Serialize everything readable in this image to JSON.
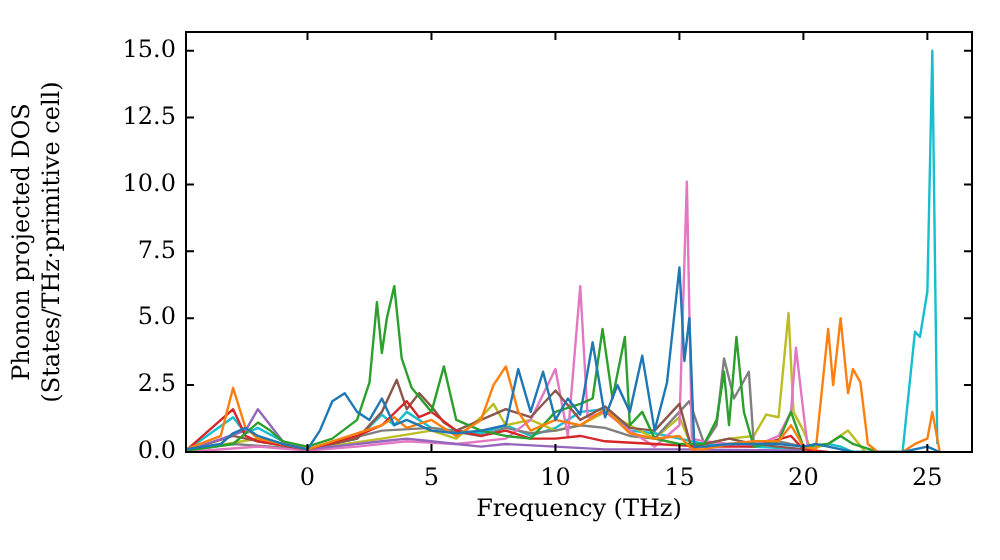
{
  "chart_data": {
    "type": "line",
    "xlabel": "Frequency (THz)",
    "ylabel": "Phonon projected DOS\n(States/THz·primitive cell)",
    "xlim": [
      -4.9,
      26.8
    ],
    "xticks": [
      0,
      5,
      10,
      15,
      20,
      25
    ],
    "ylim": [
      0,
      15.7
    ],
    "yticks": [
      {
        "value": 0,
        "label": "0.0"
      },
      {
        "value": 2.5,
        "label": "2.5"
      },
      {
        "value": 5,
        "label": "5.0"
      },
      {
        "value": 7.5,
        "label": "7.5"
      },
      {
        "value": 10,
        "label": "10.0"
      },
      {
        "value": 12.5,
        "label": "12.5"
      },
      {
        "value": 15,
        "label": "15.0"
      }
    ],
    "grid": false,
    "legend": false,
    "marker": "none",
    "line_style": "solid",
    "series": [
      {
        "color": "#1f77b4",
        "x": [
          -4.9,
          -3.5,
          -3,
          -2.5,
          -2,
          -1,
          0,
          0.5,
          1,
          1.5,
          2,
          2.5,
          3,
          3.5,
          4,
          5,
          6,
          7,
          8,
          8.5,
          9,
          9.5,
          10,
          10.5,
          11,
          11.5,
          12,
          12.5,
          13,
          13.5,
          14,
          14.5,
          15,
          15.2,
          15.4,
          15.6,
          16,
          17,
          18,
          19,
          20,
          20.5,
          21,
          22,
          24,
          25,
          25.5
        ],
        "values": [
          0.1,
          0.3,
          0.7,
          0.9,
          0.6,
          0.3,
          0.1,
          0.8,
          1.9,
          2.2,
          1.5,
          1.2,
          2.0,
          1.0,
          1.2,
          0.8,
          0.7,
          0.8,
          1.0,
          3.1,
          1.5,
          3.0,
          1.2,
          2.0,
          1.4,
          4.1,
          1.3,
          2.5,
          1.5,
          3.6,
          0.8,
          2.6,
          6.9,
          3.4,
          5.0,
          0.2,
          0.2,
          0.3,
          0.3,
          0.3,
          0.2,
          0.3,
          0.2,
          0,
          0,
          0.2,
          0
        ]
      },
      {
        "color": "#ff7f0e",
        "x": [
          -4.9,
          -3.5,
          -3,
          -2.5,
          -2,
          -1,
          0,
          1,
          2,
          3,
          3.5,
          4,
          5,
          6,
          7,
          7.5,
          8,
          8.5,
          9,
          10,
          11,
          12,
          13,
          14,
          15,
          15.5,
          16,
          17,
          18,
          19,
          19.5,
          20,
          20.5,
          21,
          21.2,
          21.5,
          21.8,
          22,
          22.3,
          22.6,
          23,
          24,
          24.5,
          25,
          25.2,
          25.5
        ],
        "values": [
          0.1,
          0.6,
          2.4,
          0.9,
          0.5,
          0.3,
          0.1,
          0.4,
          0.7,
          1.0,
          1.3,
          0.9,
          1.2,
          0.6,
          1.2,
          2.5,
          3.2,
          1.5,
          0.8,
          1.2,
          1.0,
          1.6,
          0.7,
          0.5,
          0.6,
          0.1,
          0.1,
          0.3,
          0.4,
          0.4,
          1.0,
          0.2,
          0.1,
          4.6,
          2.5,
          5.0,
          2.2,
          3.1,
          2.6,
          0.3,
          0,
          0,
          0.3,
          0.5,
          1.5,
          0
        ]
      },
      {
        "color": "#2ca02c",
        "x": [
          -4.9,
          -3,
          -2,
          -1.5,
          -1,
          0,
          1,
          2,
          2.5,
          2.8,
          3,
          3.2,
          3.5,
          3.8,
          4.2,
          5,
          5.5,
          6,
          7,
          8,
          9,
          10,
          11,
          11.5,
          11.9,
          12.3,
          12.8,
          13,
          13.5,
          14,
          15,
          16,
          16.5,
          16.8,
          17,
          17.3,
          17.6,
          18,
          19,
          19.5,
          20,
          21,
          21.5,
          22,
          23
        ],
        "values": [
          0.05,
          0.3,
          1.1,
          0.8,
          0.4,
          0.2,
          0.5,
          1.2,
          2.6,
          5.6,
          3.7,
          5.0,
          6.2,
          3.5,
          2.4,
          1.5,
          3.2,
          1.2,
          0.8,
          0.6,
          0.5,
          1.5,
          1.8,
          2.0,
          4.6,
          2.0,
          4.3,
          1.0,
          1.5,
          0.5,
          0.3,
          0.3,
          1.2,
          3.0,
          1.0,
          4.3,
          1.5,
          0.2,
          0.4,
          1.5,
          0.2,
          0.3,
          0.6,
          0.3,
          0
        ]
      },
      {
        "color": "#d62728",
        "x": [
          -4.9,
          -3,
          -2.5,
          -2,
          0,
          2,
          3,
          4,
          4.5,
          5,
          6,
          7,
          8,
          9,
          10,
          11,
          12,
          14,
          16,
          18,
          19.5,
          20,
          21
        ],
        "values": [
          0.05,
          1.6,
          0.6,
          0.4,
          0.1,
          0.6,
          1.0,
          1.9,
          1.3,
          1.5,
          0.8,
          0.6,
          0.8,
          0.5,
          0.5,
          0.6,
          0.4,
          0.3,
          0.2,
          0.2,
          0.6,
          0.1,
          0
        ]
      },
      {
        "color": "#9467bd",
        "x": [
          -4.9,
          -2.5,
          -2,
          -1.5,
          -1,
          0,
          2,
          3,
          4,
          5,
          6,
          7,
          8,
          10,
          12,
          15,
          20
        ],
        "values": [
          0.05,
          0.8,
          1.6,
          1.0,
          0.4,
          0.1,
          0.3,
          0.4,
          0.5,
          0.4,
          0.3,
          0.2,
          0.3,
          0.2,
          0.1,
          0.1,
          0.05
        ]
      },
      {
        "color": "#8c564b",
        "x": [
          -4.9,
          -3,
          -2,
          0,
          2,
          3,
          3.6,
          4,
          4.5,
          5,
          5.5,
          6,
          7,
          8,
          9,
          10,
          11,
          12,
          13,
          14,
          15,
          15.5,
          16,
          17,
          18,
          19,
          20
        ],
        "values": [
          0.05,
          0.6,
          0.4,
          0.1,
          0.5,
          1.5,
          2.7,
          1.6,
          2.2,
          1.7,
          1.1,
          0.8,
          1.2,
          1.6,
          1.3,
          2.3,
          1.2,
          1.7,
          0.9,
          0.8,
          1.8,
          0.1,
          0.3,
          0.5,
          0.3,
          0.2,
          0.1
        ]
      },
      {
        "color": "#e377c2",
        "x": [
          -4.9,
          -2,
          0,
          2,
          4,
          6,
          8,
          9,
          10,
          10.5,
          11,
          11.3,
          12,
          13,
          14,
          15,
          15.3,
          15.5,
          16,
          17,
          18,
          19,
          19.5,
          19.7,
          20,
          20.2
        ],
        "values": [
          0,
          0.2,
          0.05,
          0.2,
          0.4,
          0.3,
          0.5,
          1.2,
          3.1,
          0.6,
          6.2,
          1.3,
          1.5,
          0.8,
          0.2,
          1.0,
          10.1,
          0.5,
          0.4,
          0.3,
          0.2,
          0.6,
          1.5,
          3.9,
          1.5,
          0
        ]
      },
      {
        "color": "#7f7f7f",
        "x": [
          -4.9,
          -3,
          0,
          3,
          5,
          7,
          8,
          9,
          10,
          11,
          12,
          13,
          14,
          15,
          15.4,
          16,
          16.5,
          16.8,
          17.2,
          17.8,
          18,
          19,
          20
        ],
        "values": [
          0.05,
          0.3,
          0.1,
          0.8,
          0.9,
          0.6,
          0.9,
          0.7,
          0.8,
          1.0,
          0.9,
          0.6,
          0.5,
          1.5,
          1.9,
          0.3,
          1.0,
          3.5,
          2.0,
          3.0,
          0.3,
          0.4,
          0.2
        ]
      },
      {
        "color": "#bcbd22",
        "x": [
          -4.9,
          -2,
          0,
          3,
          5,
          6,
          7,
          7.5,
          8,
          9,
          10,
          11,
          12,
          13,
          14,
          15,
          15.5,
          17,
          18,
          18.5,
          19,
          19.4,
          19.6,
          20,
          20.3,
          21,
          21.8,
          22.5
        ],
        "values": [
          0.05,
          0.5,
          0.1,
          0.5,
          0.8,
          0.5,
          1.3,
          1.8,
          1.0,
          1.2,
          0.8,
          1.0,
          1.5,
          1.0,
          0.5,
          1.3,
          0.2,
          0.5,
          0.6,
          1.4,
          1.3,
          5.2,
          1.5,
          0.8,
          0.1,
          0.3,
          0.8,
          0
        ]
      },
      {
        "color": "#17becf",
        "x": [
          -4.9,
          -3,
          -2.5,
          -2,
          -1,
          0,
          2,
          3,
          3.5,
          4,
          5,
          6,
          7,
          8,
          9,
          10,
          11,
          12,
          13,
          14,
          15,
          16,
          18,
          20,
          21,
          21.5,
          22,
          24,
          24.5,
          24.7,
          25,
          25.2,
          25.4
        ],
        "values": [
          0.05,
          1.3,
          0.7,
          0.9,
          0.4,
          0.1,
          0.5,
          1.4,
          1.0,
          1.5,
          0.9,
          0.8,
          0.7,
          1.0,
          0.6,
          0.9,
          1.5,
          1.6,
          0.8,
          0.7,
          0.5,
          0.3,
          0.2,
          0.1,
          0.3,
          0.2,
          0,
          0,
          4.5,
          4.3,
          6.0,
          15.0,
          0.3
        ]
      }
    ]
  }
}
